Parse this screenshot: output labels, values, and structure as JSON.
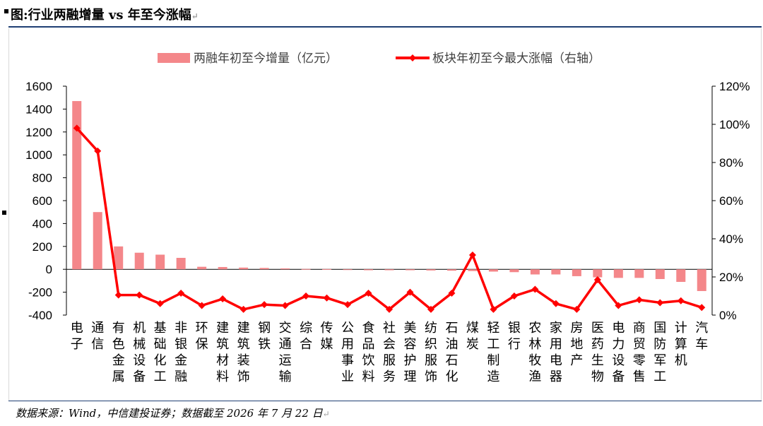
{
  "header": {
    "title": "图:行业两融增量 vs 年至今涨幅"
  },
  "footer": {
    "source": "数据来源：Wind，中信建投证券；数据截至 2026 年 7 月 22 日"
  },
  "colors": {
    "bar": "#f4878a",
    "line": "#ff0000",
    "rule": "#1f3f73"
  },
  "chart_data": {
    "type": "bar+line",
    "title": "",
    "legend": {
      "position": "top",
      "bar_label": "两融年初至今增量（亿元）",
      "line_label": "板块年初至今最大涨幅（右轴）"
    },
    "categories": [
      "电子",
      "通信",
      "有色金属",
      "机械设备",
      "基础化工",
      "非银金融",
      "环保",
      "建筑材料",
      "建筑装饰",
      "钢铁",
      "交通运输",
      "综合",
      "传媒",
      "公用事业",
      "食品饮料",
      "社会服务",
      "美容护理",
      "纺织服饰",
      "石油石化",
      "煤炭",
      "轻工制造",
      "银行",
      "农林牧渔",
      "家用电器",
      "房地产",
      "医药生物",
      "电力设备",
      "商贸零售",
      "国防军工",
      "计算机",
      "汽车"
    ],
    "series": [
      {
        "name": "两融年初至今增量（亿元）",
        "type": "bar",
        "axis": "left",
        "values": [
          1470,
          500,
          200,
          145,
          128,
          100,
          22,
          20,
          15,
          12,
          8,
          3,
          2,
          -5,
          -8,
          -8,
          -8,
          -10,
          -12,
          -15,
          -20,
          -25,
          -45,
          -45,
          -60,
          -70,
          -75,
          -75,
          -85,
          -110,
          -190
        ]
      },
      {
        "name": "板块年初至今最大涨幅（右轴）",
        "type": "line",
        "axis": "right",
        "values": [
          98,
          86,
          10.5,
          10.5,
          6,
          11.5,
          5,
          8.5,
          3,
          5.5,
          5,
          10,
          9,
          5.5,
          11.5,
          3,
          12,
          3,
          11.5,
          31.5,
          3,
          10,
          13.5,
          6,
          3,
          18.5,
          5,
          8,
          6.5,
          7.5,
          4
        ]
      }
    ],
    "y_left": {
      "min": -400,
      "max": 1600,
      "ticks": [
        "-400",
        "-200",
        "0",
        "200",
        "400",
        "600",
        "800",
        "1000",
        "1200",
        "1400",
        "1600"
      ]
    },
    "y_right": {
      "min": 0,
      "max": 120,
      "ticks": [
        "0%",
        "20%",
        "40%",
        "60%",
        "80%",
        "100%",
        "120%"
      ]
    },
    "grid": false
  }
}
